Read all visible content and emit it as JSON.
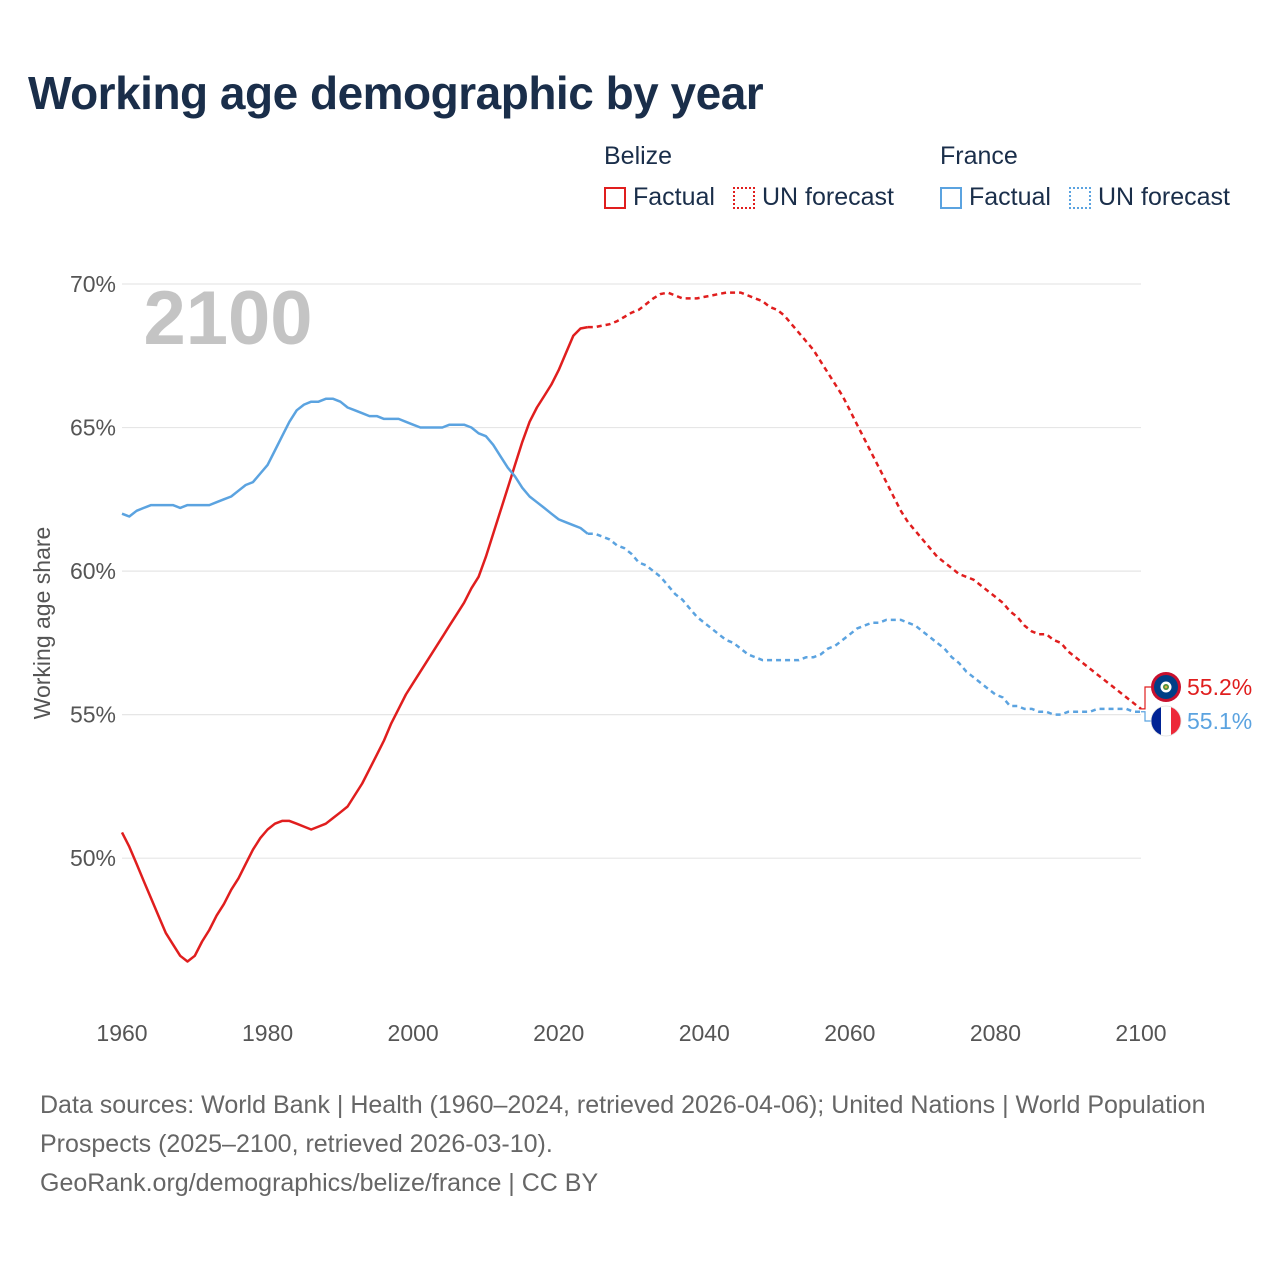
{
  "title": "Working age demographic by year",
  "legend": {
    "groups": [
      {
        "name": "Belize",
        "color": "#e01e1e",
        "factual_label": "Factual",
        "forecast_label": "UN forecast"
      },
      {
        "name": "France",
        "color": "#5ba3e0",
        "factual_label": "Factual",
        "forecast_label": "UN forecast"
      }
    ]
  },
  "chart_data": {
    "type": "line",
    "title": "Working age demographic by year",
    "xlabel": "",
    "ylabel": "Working age share",
    "xlim": [
      1960,
      2100
    ],
    "ylim": [
      45.2,
      70
    ],
    "x_ticks": [
      1960,
      1980,
      2000,
      2020,
      2040,
      2060,
      2080,
      2100
    ],
    "y_ticks": [
      50,
      55,
      60,
      65,
      70
    ],
    "y_tick_format": "%",
    "year_label": "2100",
    "grid": true,
    "series": [
      {
        "name": "Belize",
        "color": "#e01e1e",
        "end_label": "55.2%",
        "flag": "belize-flag",
        "factual": [
          [
            1960,
            50.9
          ],
          [
            1961,
            50.4
          ],
          [
            1962,
            49.8
          ],
          [
            1963,
            49.2
          ],
          [
            1964,
            48.6
          ],
          [
            1965,
            48.0
          ],
          [
            1966,
            47.4
          ],
          [
            1967,
            47.0
          ],
          [
            1968,
            46.6
          ],
          [
            1969,
            46.4
          ],
          [
            1970,
            46.6
          ],
          [
            1971,
            47.1
          ],
          [
            1972,
            47.5
          ],
          [
            1973,
            48.0
          ],
          [
            1974,
            48.4
          ],
          [
            1975,
            48.9
          ],
          [
            1976,
            49.3
          ],
          [
            1977,
            49.8
          ],
          [
            1978,
            50.3
          ],
          [
            1979,
            50.7
          ],
          [
            1980,
            51.0
          ],
          [
            1981,
            51.2
          ],
          [
            1982,
            51.3
          ],
          [
            1983,
            51.3
          ],
          [
            1984,
            51.2
          ],
          [
            1985,
            51.1
          ],
          [
            1986,
            51.0
          ],
          [
            1987,
            51.1
          ],
          [
            1988,
            51.2
          ],
          [
            1989,
            51.4
          ],
          [
            1990,
            51.6
          ],
          [
            1991,
            51.8
          ],
          [
            1992,
            52.2
          ],
          [
            1993,
            52.6
          ],
          [
            1994,
            53.1
          ],
          [
            1995,
            53.6
          ],
          [
            1996,
            54.1
          ],
          [
            1997,
            54.7
          ],
          [
            1998,
            55.2
          ],
          [
            1999,
            55.7
          ],
          [
            2000,
            56.1
          ],
          [
            2001,
            56.5
          ],
          [
            2002,
            56.9
          ],
          [
            2003,
            57.3
          ],
          [
            2004,
            57.7
          ],
          [
            2005,
            58.1
          ],
          [
            2006,
            58.5
          ],
          [
            2007,
            58.9
          ],
          [
            2008,
            59.4
          ],
          [
            2009,
            59.8
          ],
          [
            2010,
            60.5
          ],
          [
            2011,
            61.3
          ],
          [
            2012,
            62.1
          ],
          [
            2013,
            62.9
          ],
          [
            2014,
            63.7
          ],
          [
            2015,
            64.5
          ],
          [
            2016,
            65.2
          ],
          [
            2017,
            65.7
          ],
          [
            2018,
            66.1
          ],
          [
            2019,
            66.5
          ],
          [
            2020,
            67.0
          ],
          [
            2021,
            67.6
          ],
          [
            2022,
            68.2
          ],
          [
            2023,
            68.45
          ],
          [
            2024,
            68.5
          ]
        ],
        "forecast": [
          [
            2024,
            68.5
          ],
          [
            2025,
            68.5
          ],
          [
            2026,
            68.55
          ],
          [
            2027,
            68.6
          ],
          [
            2028,
            68.7
          ],
          [
            2029,
            68.85
          ],
          [
            2030,
            69.0
          ],
          [
            2031,
            69.1
          ],
          [
            2032,
            69.3
          ],
          [
            2033,
            69.5
          ],
          [
            2034,
            69.65
          ],
          [
            2035,
            69.7
          ],
          [
            2036,
            69.6
          ],
          [
            2037,
            69.5
          ],
          [
            2038,
            69.5
          ],
          [
            2039,
            69.5
          ],
          [
            2040,
            69.55
          ],
          [
            2041,
            69.6
          ],
          [
            2042,
            69.65
          ],
          [
            2043,
            69.7
          ],
          [
            2044,
            69.7
          ],
          [
            2045,
            69.7
          ],
          [
            2046,
            69.6
          ],
          [
            2047,
            69.5
          ],
          [
            2048,
            69.4
          ],
          [
            2049,
            69.2
          ],
          [
            2050,
            69.1
          ],
          [
            2051,
            68.9
          ],
          [
            2052,
            68.6
          ],
          [
            2053,
            68.3
          ],
          [
            2054,
            68.0
          ],
          [
            2055,
            67.7
          ],
          [
            2056,
            67.3
          ],
          [
            2057,
            66.9
          ],
          [
            2058,
            66.5
          ],
          [
            2059,
            66.1
          ],
          [
            2060,
            65.6
          ],
          [
            2061,
            65.1
          ],
          [
            2062,
            64.6
          ],
          [
            2063,
            64.1
          ],
          [
            2064,
            63.6
          ],
          [
            2065,
            63.1
          ],
          [
            2066,
            62.6
          ],
          [
            2067,
            62.1
          ],
          [
            2068,
            61.7
          ],
          [
            2069,
            61.4
          ],
          [
            2070,
            61.1
          ],
          [
            2071,
            60.8
          ],
          [
            2072,
            60.5
          ],
          [
            2073,
            60.3
          ],
          [
            2074,
            60.1
          ],
          [
            2075,
            59.9
          ],
          [
            2076,
            59.8
          ],
          [
            2077,
            59.7
          ],
          [
            2078,
            59.5
          ],
          [
            2079,
            59.3
          ],
          [
            2080,
            59.1
          ],
          [
            2081,
            58.9
          ],
          [
            2082,
            58.6
          ],
          [
            2083,
            58.4
          ],
          [
            2084,
            58.1
          ],
          [
            2085,
            57.9
          ],
          [
            2086,
            57.8
          ],
          [
            2087,
            57.8
          ],
          [
            2088,
            57.6
          ],
          [
            2089,
            57.5
          ],
          [
            2090,
            57.2
          ],
          [
            2091,
            57.0
          ],
          [
            2092,
            56.8
          ],
          [
            2093,
            56.6
          ],
          [
            2094,
            56.4
          ],
          [
            2095,
            56.2
          ],
          [
            2096,
            56.0
          ],
          [
            2097,
            55.8
          ],
          [
            2098,
            55.6
          ],
          [
            2099,
            55.4
          ],
          [
            2100,
            55.2
          ]
        ]
      },
      {
        "name": "France",
        "color": "#5ba3e0",
        "end_label": "55.1%",
        "flag": "france-flag",
        "factual": [
          [
            1960,
            62.0
          ],
          [
            1961,
            61.9
          ],
          [
            1962,
            62.1
          ],
          [
            1963,
            62.2
          ],
          [
            1964,
            62.3
          ],
          [
            1965,
            62.3
          ],
          [
            1966,
            62.3
          ],
          [
            1967,
            62.3
          ],
          [
            1968,
            62.2
          ],
          [
            1969,
            62.3
          ],
          [
            1970,
            62.3
          ],
          [
            1971,
            62.3
          ],
          [
            1972,
            62.3
          ],
          [
            1973,
            62.4
          ],
          [
            1974,
            62.5
          ],
          [
            1975,
            62.6
          ],
          [
            1976,
            62.8
          ],
          [
            1977,
            63.0
          ],
          [
            1978,
            63.1
          ],
          [
            1979,
            63.4
          ],
          [
            1980,
            63.7
          ],
          [
            1981,
            64.2
          ],
          [
            1982,
            64.7
          ],
          [
            1983,
            65.2
          ],
          [
            1984,
            65.6
          ],
          [
            1985,
            65.8
          ],
          [
            1986,
            65.9
          ],
          [
            1987,
            65.9
          ],
          [
            1988,
            66.0
          ],
          [
            1989,
            66.0
          ],
          [
            1990,
            65.9
          ],
          [
            1991,
            65.7
          ],
          [
            1992,
            65.6
          ],
          [
            1993,
            65.5
          ],
          [
            1994,
            65.4
          ],
          [
            1995,
            65.4
          ],
          [
            1996,
            65.3
          ],
          [
            1997,
            65.3
          ],
          [
            1998,
            65.3
          ],
          [
            1999,
            65.2
          ],
          [
            2000,
            65.1
          ],
          [
            2001,
            65.0
          ],
          [
            2002,
            65.0
          ],
          [
            2003,
            65.0
          ],
          [
            2004,
            65.0
          ],
          [
            2005,
            65.1
          ],
          [
            2006,
            65.1
          ],
          [
            2007,
            65.1
          ],
          [
            2008,
            65.0
          ],
          [
            2009,
            64.8
          ],
          [
            2010,
            64.7
          ],
          [
            2011,
            64.4
          ],
          [
            2012,
            64.0
          ],
          [
            2013,
            63.6
          ],
          [
            2014,
            63.3
          ],
          [
            2015,
            62.9
          ],
          [
            2016,
            62.6
          ],
          [
            2017,
            62.4
          ],
          [
            2018,
            62.2
          ],
          [
            2019,
            62.0
          ],
          [
            2020,
            61.8
          ],
          [
            2021,
            61.7
          ],
          [
            2022,
            61.6
          ],
          [
            2023,
            61.5
          ],
          [
            2024,
            61.3
          ]
        ],
        "forecast": [
          [
            2024,
            61.3
          ],
          [
            2025,
            61.3
          ],
          [
            2026,
            61.2
          ],
          [
            2027,
            61.1
          ],
          [
            2028,
            60.9
          ],
          [
            2029,
            60.8
          ],
          [
            2030,
            60.6
          ],
          [
            2031,
            60.3
          ],
          [
            2032,
            60.2
          ],
          [
            2033,
            60.0
          ],
          [
            2034,
            59.8
          ],
          [
            2035,
            59.5
          ],
          [
            2036,
            59.2
          ],
          [
            2037,
            59.0
          ],
          [
            2038,
            58.7
          ],
          [
            2039,
            58.4
          ],
          [
            2040,
            58.2
          ],
          [
            2041,
            58.0
          ],
          [
            2042,
            57.8
          ],
          [
            2043,
            57.6
          ],
          [
            2044,
            57.5
          ],
          [
            2045,
            57.3
          ],
          [
            2046,
            57.1
          ],
          [
            2047,
            57.0
          ],
          [
            2048,
            56.9
          ],
          [
            2049,
            56.9
          ],
          [
            2050,
            56.9
          ],
          [
            2051,
            56.9
          ],
          [
            2052,
            56.9
          ],
          [
            2053,
            56.9
          ],
          [
            2054,
            57.0
          ],
          [
            2055,
            57.0
          ],
          [
            2056,
            57.1
          ],
          [
            2057,
            57.3
          ],
          [
            2058,
            57.4
          ],
          [
            2059,
            57.6
          ],
          [
            2060,
            57.8
          ],
          [
            2061,
            58.0
          ],
          [
            2062,
            58.1
          ],
          [
            2063,
            58.2
          ],
          [
            2064,
            58.2
          ],
          [
            2065,
            58.3
          ],
          [
            2066,
            58.3
          ],
          [
            2067,
            58.3
          ],
          [
            2068,
            58.2
          ],
          [
            2069,
            58.1
          ],
          [
            2070,
            57.9
          ],
          [
            2071,
            57.7
          ],
          [
            2072,
            57.5
          ],
          [
            2073,
            57.3
          ],
          [
            2074,
            57.0
          ],
          [
            2075,
            56.8
          ],
          [
            2076,
            56.5
          ],
          [
            2077,
            56.3
          ],
          [
            2078,
            56.1
          ],
          [
            2079,
            55.9
          ],
          [
            2080,
            55.7
          ],
          [
            2081,
            55.6
          ],
          [
            2082,
            55.3
          ],
          [
            2083,
            55.3
          ],
          [
            2084,
            55.2
          ],
          [
            2085,
            55.2
          ],
          [
            2086,
            55.1
          ],
          [
            2087,
            55.1
          ],
          [
            2088,
            55.0
          ],
          [
            2089,
            55.0
          ],
          [
            2090,
            55.1
          ],
          [
            2091,
            55.1
          ],
          [
            2092,
            55.1
          ],
          [
            2093,
            55.1
          ],
          [
            2094,
            55.2
          ],
          [
            2095,
            55.2
          ],
          [
            2096,
            55.2
          ],
          [
            2097,
            55.2
          ],
          [
            2098,
            55.2
          ],
          [
            2099,
            55.1
          ],
          [
            2100,
            55.1
          ]
        ]
      }
    ]
  },
  "footer": {
    "sources": "Data sources: World Bank | Health (1960–2024, retrieved 2026-04-06); United Nations | World Population Prospects (2025–2100, retrieved 2026-03-10).",
    "attribution": "GeoRank.org/demographics/belize/france | CC BY"
  }
}
